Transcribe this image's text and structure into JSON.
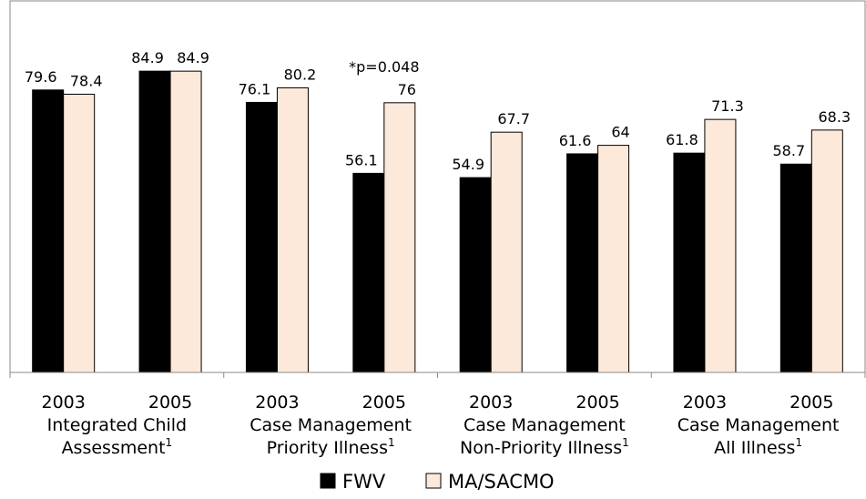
{
  "chart_data": {
    "type": "bar",
    "ylim": [
      0,
      100
    ],
    "grid": false,
    "legend_position": "bottom",
    "categories": [
      "2003",
      "2005",
      "2003",
      "2005",
      "2003",
      "2005",
      "2003",
      "2005"
    ],
    "groups": [
      {
        "lines": [
          "Integrated Child",
          "Assessment"
        ],
        "superscript": "1"
      },
      {
        "lines": [
          "Case Management",
          "Priority Illness"
        ],
        "superscript": "1"
      },
      {
        "lines": [
          "Case Management",
          "Non-Priority Illness"
        ],
        "superscript": "1"
      },
      {
        "lines": [
          "Case Management",
          "All Illness"
        ],
        "superscript": "1"
      }
    ],
    "series": [
      {
        "name": "FWV",
        "color": "#000000",
        "values": [
          79.6,
          84.9,
          76.1,
          56.1,
          54.9,
          61.6,
          61.8,
          58.7
        ]
      },
      {
        "name": "MA/SACMO",
        "color": "#fde9d9",
        "values": [
          78.4,
          84.9,
          80.2,
          76,
          67.7,
          64,
          71.3,
          68.3
        ]
      }
    ],
    "annotations": [
      {
        "text": "*p=0.048",
        "category_index": 3
      }
    ]
  }
}
